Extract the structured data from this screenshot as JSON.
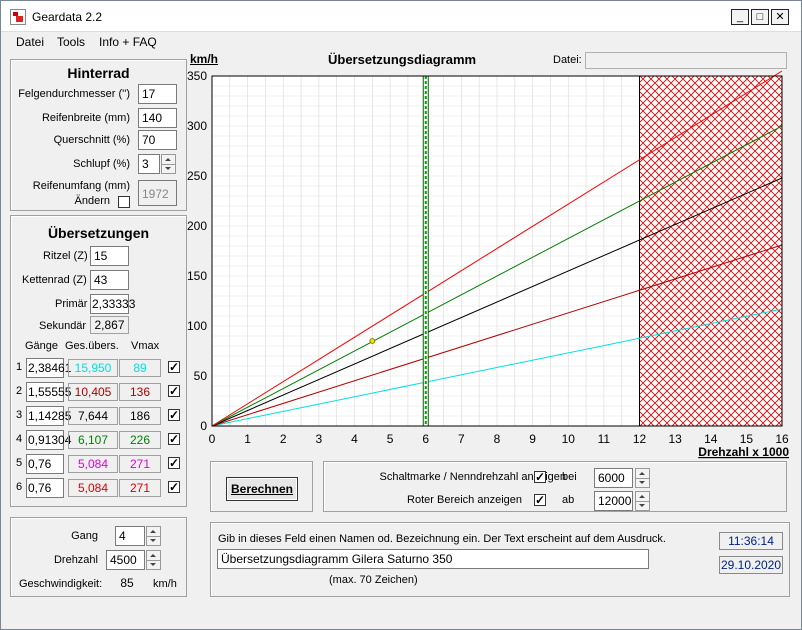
{
  "window": {
    "title": "Geardata 2.2",
    "min": "_",
    "max": "□",
    "close": "✕"
  },
  "menu": [
    "Datei",
    "Tools",
    "Info + FAQ"
  ],
  "hinterrad": {
    "heading": "Hinterrad",
    "fields": [
      {
        "label": "Felgendurchmesser ('')",
        "value": "17"
      },
      {
        "label": "Reifenbreite (mm)",
        "value": "140"
      },
      {
        "label": "Querschnitt (%)",
        "value": "70"
      },
      {
        "label": "Schlupf (%)",
        "value": "3"
      }
    ],
    "umfang_label": "Reifenumfang (mm)",
    "aendern_label": "Ändern",
    "umfang_value": "1972"
  },
  "uebersetzungen": {
    "heading": "Übersetzungen",
    "ritzel_label": "Ritzel (Z)",
    "ritzel": "15",
    "kettenrad_label": "Kettenrad (Z)",
    "kettenrad": "43",
    "primaer_label": "Primär",
    "primaer": "2,33333",
    "sekundaer_label": "Sekundär",
    "sekundaer": "2,867",
    "col_gaenge": "Gänge",
    "col_ges": "Ges.übers.",
    "col_vmax": "Vmax",
    "gears": [
      {
        "n": "1",
        "ratio": "2,38461",
        "ges": "15,950",
        "vmax": "89",
        "color": "#00e0e0"
      },
      {
        "n": "2",
        "ratio": "1,55555",
        "ges": "10,405",
        "vmax": "136",
        "color": "#b00000"
      },
      {
        "n": "3",
        "ratio": "1,14285",
        "ges": "7,644",
        "vmax": "186",
        "color": "#000000"
      },
      {
        "n": "4",
        "ratio": "0,91304",
        "ges": "6,107",
        "vmax": "226",
        "color": "#008000"
      },
      {
        "n": "5",
        "ratio": "0,76",
        "ges": "5,084",
        "vmax": "271",
        "color": "#e000e0"
      },
      {
        "n": "6",
        "ratio": "0,76",
        "ges": "5,084",
        "vmax": "271",
        "color": "#e00000"
      }
    ],
    "check": "✓"
  },
  "bottomleft": {
    "gang_label": "Gang",
    "gang": "4",
    "drehzahl_label": "Drehzahl",
    "drehzahl": "4500",
    "geschw_label": "Geschwindigkeit:",
    "geschw": "85",
    "geschw_unit": "km/h"
  },
  "chart_header": {
    "ylabel": "km/h",
    "title": "Übersetzungsdiagramm",
    "datei_label": "Datei:",
    "datei_value": ""
  },
  "chart_data": {
    "type": "line",
    "xlabel": "Drehzahl x 1000",
    "ylabel": "km/h",
    "title": "Übersetzungsdiagramm",
    "xlim": [
      0,
      16
    ],
    "ylim": [
      0,
      350
    ],
    "xticks": [
      0,
      1,
      2,
      3,
      4,
      5,
      6,
      7,
      8,
      9,
      10,
      11,
      12,
      13,
      14,
      15,
      16
    ],
    "yticks": [
      0,
      50,
      100,
      150,
      200,
      250,
      300,
      350
    ],
    "grid": true,
    "series": [
      {
        "color": "#00e0e0",
        "x": [
          0,
          16
        ],
        "y": [
          0,
          117
        ]
      },
      {
        "color": "#b00000",
        "x": [
          0,
          16
        ],
        "y": [
          0,
          181
        ]
      },
      {
        "color": "#000000",
        "x": [
          0,
          16
        ],
        "y": [
          0,
          248
        ]
      },
      {
        "color": "#008000",
        "x": [
          0,
          16
        ],
        "y": [
          0,
          300
        ]
      },
      {
        "color": "#ff0000",
        "x": [
          0,
          16
        ],
        "y": [
          0,
          355
        ]
      }
    ],
    "shift_marker_x": 6,
    "red_zone": [
      12,
      16
    ],
    "point": {
      "x": 4.5,
      "y": 85
    }
  },
  "controls": {
    "berechnen": "Berechnen",
    "schaltmarke_label": "Schaltmarke / Nenndrehzahl anzeigen",
    "bei": "bei",
    "bei_value": "6000",
    "rot_label": "Roter Bereich anzeigen",
    "ab": "ab",
    "ab_value": "12000"
  },
  "footer": {
    "hint": "Gib in dieses Feld einen Namen od. Bezeichnung ein. Der Text erscheint auf dem Ausdruck.",
    "name": "Übersetzungsdiagramm Gilera Saturno 350",
    "max": "(max. 70 Zeichen)",
    "time": "11:36:14",
    "date": "29.10.2020"
  }
}
